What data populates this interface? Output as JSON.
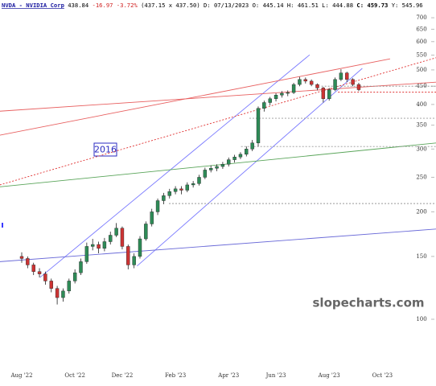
{
  "header": {
    "symbol": "NVDA - NVIDIA Corp",
    "last": "438.84",
    "change": "-16.97 -3.72%",
    "quote": "(437.15 x 437.50) D: 07/13/2023 O: 445.14 H: 461.51 L: 444.88",
    "close": "C: 459.73",
    "extra": "Y: 545.96"
  },
  "chart_data": {
    "type": "candlestick",
    "log_scale": true,
    "categories": [
      "Aug '22",
      null,
      null,
      null,
      null,
      null,
      null,
      null,
      null,
      "Oct '22",
      null,
      null,
      null,
      null,
      null,
      null,
      null,
      "Dec '22",
      null,
      null,
      null,
      null,
      null,
      null,
      null,
      null,
      "Feb '23",
      null,
      null,
      null,
      null,
      null,
      null,
      null,
      null,
      "Apr '23",
      null,
      null,
      null,
      null,
      null,
      null,
      null,
      "Jun '23",
      null,
      null,
      null,
      null,
      null,
      null,
      null,
      null,
      "Aug '23",
      null,
      null,
      null,
      null,
      null,
      null,
      null,
      null,
      "Oct '23",
      null,
      null,
      null,
      null,
      null,
      null,
      null,
      null
    ],
    "open": [
      150,
      148,
      142,
      136,
      134,
      128,
      122,
      115,
      120,
      128,
      135,
      145,
      160,
      162,
      158,
      165,
      172,
      180,
      160,
      142,
      150,
      168,
      185,
      200,
      215,
      222,
      228,
      232,
      230,
      238,
      240,
      250,
      262,
      265,
      268,
      272,
      280,
      285,
      290,
      300,
      312,
      390,
      405,
      415,
      425,
      430,
      432,
      455,
      470,
      465,
      455,
      445,
      415,
      440,
      470,
      490,
      470,
      455,
      null,
      null,
      null,
      null,
      null,
      null,
      null,
      null,
      null,
      null,
      null,
      null
    ],
    "high": [
      154,
      150,
      144,
      139,
      136,
      130,
      124,
      122,
      130,
      138,
      148,
      164,
      168,
      165,
      169,
      176,
      186,
      182,
      162,
      153,
      171,
      188,
      204,
      218,
      226,
      232,
      236,
      236,
      242,
      244,
      254,
      266,
      270,
      272,
      276,
      284,
      289,
      294,
      305,
      318,
      395,
      410,
      420,
      430,
      436,
      438,
      460,
      478,
      476,
      470,
      458,
      448,
      445,
      476,
      502,
      494,
      474,
      460,
      null,
      null,
      null,
      null,
      null,
      null,
      null,
      null,
      null,
      null,
      null,
      null
    ],
    "low": [
      144,
      139,
      133,
      131,
      125,
      119,
      110,
      112,
      118,
      126,
      133,
      143,
      156,
      153,
      155,
      162,
      170,
      157,
      138,
      139,
      148,
      166,
      182,
      196,
      210,
      218,
      224,
      224,
      227,
      234,
      237,
      247,
      258,
      260,
      264,
      268,
      275,
      281,
      286,
      296,
      305,
      382,
      398,
      408,
      418,
      422,
      428,
      450,
      458,
      450,
      438,
      405,
      410,
      436,
      465,
      462,
      450,
      436,
      null,
      null,
      null,
      null,
      null,
      null,
      null,
      null,
      null,
      null,
      null,
      null
    ],
    "close": [
      148,
      142,
      136,
      134,
      128,
      122,
      115,
      120,
      128,
      135,
      145,
      160,
      162,
      158,
      165,
      172,
      180,
      160,
      142,
      150,
      168,
      185,
      200,
      215,
      222,
      228,
      232,
      230,
      238,
      240,
      250,
      262,
      265,
      268,
      272,
      280,
      285,
      290,
      300,
      312,
      390,
      405,
      415,
      425,
      430,
      432,
      455,
      470,
      465,
      455,
      445,
      415,
      440,
      470,
      490,
      470,
      455,
      440,
      null,
      null,
      null,
      null,
      null,
      null,
      null,
      null,
      null,
      null,
      null,
      null
    ],
    "up_color": "#2e8b57",
    "down_color": "#cc3333",
    "ylim": [
      74,
      785
    ],
    "yticks": [
      100,
      150,
      200,
      250,
      300,
      350,
      400,
      450,
      500,
      550,
      600,
      650,
      700
    ],
    "lines": [
      {
        "color": "#7b7bff",
        "dash": false,
        "x": [
          3.1,
          48.7
        ],
        "y": [
          131,
          551
        ]
      },
      {
        "color": "#7b7bff",
        "dash": false,
        "x": [
          19.5,
          57.6
        ],
        "y": [
          141,
          505
        ]
      },
      {
        "color": "#6a6ad8",
        "dash": false,
        "x": [
          -3.7,
          70.1
        ],
        "y": [
          145,
          179
        ]
      },
      {
        "color": "#5aa55a",
        "dash": false,
        "x": [
          -3.7,
          70.1
        ],
        "y": [
          235,
          312
        ]
      },
      {
        "color": "#e86060",
        "dash": false,
        "x": [
          -3.7,
          70.1
        ],
        "y": [
          383,
          462
        ]
      },
      {
        "color": "#e86060",
        "dash": false,
        "x": [
          -3.7,
          62.3
        ],
        "y": [
          328,
          537
        ]
      },
      {
        "color": "#e03030",
        "dash": true,
        "x": [
          -3.7,
          70.1
        ],
        "y": [
          238,
          541
        ]
      },
      {
        "color": "#888888",
        "dash": true,
        "x": [
          50.7,
          70.1
        ],
        "y": [
          450,
          450
        ]
      },
      {
        "color": "#e03030",
        "dash": true,
        "x": [
          53.5,
          70.1
        ],
        "y": [
          433,
          433
        ]
      },
      {
        "color": "#999999",
        "dash": true,
        "x": [
          38.5,
          70.1
        ],
        "y": [
          366,
          366
        ]
      },
      {
        "color": "#999999",
        "dash": true,
        "x": [
          37.1,
          70.1
        ],
        "y": [
          305,
          305
        ]
      },
      {
        "color": "#999999",
        "dash": true,
        "x": [
          24.9,
          70.1
        ],
        "y": [
          211,
          211
        ]
      }
    ],
    "annotations": [
      "2016",
      "slopecharts.com"
    ]
  }
}
